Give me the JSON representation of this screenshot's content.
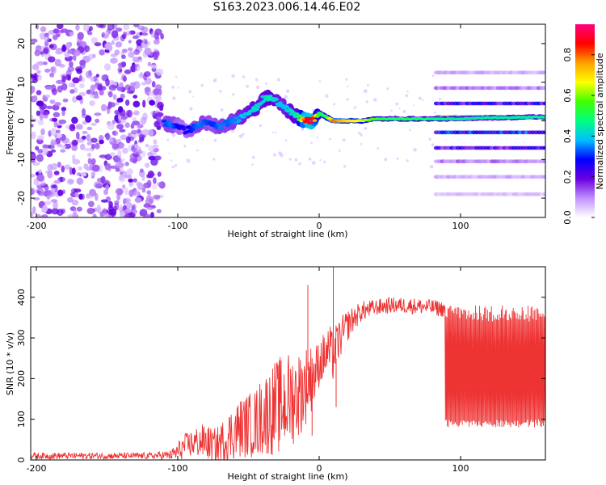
{
  "title": "S163.2023.006.14.46.E02",
  "chart_data": [
    {
      "type": "heatmap",
      "xlabel": "Height of straight line (km)",
      "ylabel": "Frequency (Hz)",
      "xlim": [
        -204,
        160
      ],
      "ylim": [
        -25,
        25
      ],
      "x_ticks": [
        -200,
        -100,
        0,
        100
      ],
      "y_ticks": [
        -20,
        -10,
        0,
        10,
        20
      ],
      "colorbar": {
        "label": "Normalized spectral amplitude",
        "range": [
          0,
          0.95
        ],
        "ticks": [
          0.0,
          0.2,
          0.4,
          0.6,
          0.8
        ],
        "colors": [
          "#ffffff",
          "#c090ff",
          "#6a00e0",
          "#0000ff",
          "#00bfff",
          "#00ff80",
          "#40ff00",
          "#ffff00",
          "#ffa000",
          "#ff0000",
          "#ff0080"
        ]
      },
      "noise_region_x": [
        -204,
        -111
      ],
      "noise_region_amplitude": 0.15,
      "ridge": [
        {
          "x": -110,
          "f": -0.5,
          "a": 0.3
        },
        {
          "x": -105,
          "f": -1.0,
          "a": 0.35
        },
        {
          "x": -100,
          "f": -1.2,
          "a": 0.28
        },
        {
          "x": -95,
          "f": -2.5,
          "a": 0.25
        },
        {
          "x": -90,
          "f": -2.0,
          "a": 0.3
        },
        {
          "x": -85,
          "f": -1.0,
          "a": 0.35
        },
        {
          "x": -80,
          "f": -0.5,
          "a": 0.32
        },
        {
          "x": -75,
          "f": -1.0,
          "a": 0.3
        },
        {
          "x": -70,
          "f": -1.5,
          "a": 0.35
        },
        {
          "x": -65,
          "f": -0.5,
          "a": 0.33
        },
        {
          "x": -60,
          "f": 0.0,
          "a": 0.35
        },
        {
          "x": -55,
          "f": 1.0,
          "a": 0.38
        },
        {
          "x": -50,
          "f": 2.5,
          "a": 0.4
        },
        {
          "x": -45,
          "f": 3.0,
          "a": 0.42
        },
        {
          "x": -40,
          "f": 5.5,
          "a": 0.4
        },
        {
          "x": -35,
          "f": 6.0,
          "a": 0.45
        },
        {
          "x": -30,
          "f": 5.0,
          "a": 0.4
        },
        {
          "x": -25,
          "f": 4.0,
          "a": 0.38
        },
        {
          "x": -20,
          "f": 2.0,
          "a": 0.42
        },
        {
          "x": -15,
          "f": 1.0,
          "a": 0.45
        },
        {
          "x": -10,
          "f": 0.0,
          "a": 0.85
        },
        {
          "x": -5,
          "f": 0.0,
          "a": 0.9
        },
        {
          "x": 0,
          "f": 2.0,
          "a": 0.5
        },
        {
          "x": 5,
          "f": 1.0,
          "a": 0.5
        },
        {
          "x": 10,
          "f": 0.0,
          "a": 0.8
        },
        {
          "x": 15,
          "f": 0.0,
          "a": 0.75
        },
        {
          "x": 20,
          "f": 0.0,
          "a": 0.7
        },
        {
          "x": 30,
          "f": 0.0,
          "a": 0.65
        },
        {
          "x": 40,
          "f": 0.5,
          "a": 0.55
        },
        {
          "x": 50,
          "f": 0.5,
          "a": 0.5
        },
        {
          "x": 60,
          "f": 0.5,
          "a": 0.5
        },
        {
          "x": 70,
          "f": 0.5,
          "a": 0.5
        },
        {
          "x": 80,
          "f": 0.5,
          "a": 0.48
        },
        {
          "x": 90,
          "f": 0.5,
          "a": 0.45
        },
        {
          "x": 100,
          "f": 0.5,
          "a": 0.45
        },
        {
          "x": 110,
          "f": 0.7,
          "a": 0.45
        },
        {
          "x": 120,
          "f": 0.8,
          "a": 0.45
        },
        {
          "x": 130,
          "f": 0.8,
          "a": 0.45
        },
        {
          "x": 140,
          "f": 0.9,
          "a": 0.45
        },
        {
          "x": 150,
          "f": 1.0,
          "a": 0.45
        },
        {
          "x": 160,
          "f": 1.0,
          "a": 0.45
        }
      ],
      "harmonic_region_x": [
        83,
        160
      ],
      "harmonics": [
        {
          "f": 12.5,
          "a": 0.08
        },
        {
          "f": 8.5,
          "a": 0.12
        },
        {
          "f": 4.5,
          "a": 0.25
        },
        {
          "f": 1.0,
          "a": 0.55
        },
        {
          "f": -3.0,
          "a": 0.3
        },
        {
          "f": -7.0,
          "a": 0.22
        },
        {
          "f": -10.5,
          "a": 0.12
        },
        {
          "f": -14.5,
          "a": 0.08
        },
        {
          "f": -19.0,
          "a": 0.06
        }
      ]
    },
    {
      "type": "line",
      "xlabel": "Height of straight line (km)",
      "ylabel": "SNR (10 * v/v)",
      "xlim": [
        -204,
        160
      ],
      "ylim": [
        0,
        475
      ],
      "x_ticks": [
        -200,
        -100,
        0,
        100
      ],
      "y_ticks": [
        0,
        100,
        200,
        300,
        400
      ],
      "color": "#ee3333",
      "series": [
        {
          "x": [
            -204,
            -180,
            -160,
            -140,
            -120,
            -105,
            -100,
            -95,
            -90,
            -85,
            -80,
            -75,
            -70,
            -65,
            -60,
            -55,
            -50,
            -45,
            -40,
            -35,
            -30,
            -25,
            -20,
            -15,
            -10,
            -7,
            -5,
            -3,
            0,
            5,
            8,
            10,
            12,
            15,
            20,
            25,
            30,
            40,
            50,
            60,
            70,
            80,
            89,
            90,
            100,
            110,
            120,
            130,
            140,
            150,
            160
          ],
          "mid": [
            10,
            10,
            10,
            10,
            10,
            12,
            20,
            35,
            40,
            45,
            45,
            35,
            40,
            55,
            70,
            80,
            85,
            90,
            110,
            120,
            130,
            140,
            150,
            160,
            180,
            200,
            200,
            210,
            240,
            260,
            270,
            250,
            280,
            300,
            330,
            350,
            365,
            375,
            380,
            380,
            378,
            375,
            370,
            230,
            230,
            230,
            230,
            230,
            230,
            230,
            230
          ],
          "spread": [
            8,
            8,
            8,
            8,
            8,
            12,
            25,
            30,
            35,
            40,
            45,
            40,
            50,
            60,
            70,
            75,
            80,
            85,
            100,
            110,
            120,
            120,
            120,
            110,
            100,
            90,
            80,
            70,
            60,
            60,
            60,
            60,
            55,
            50,
            40,
            30,
            25,
            20,
            20,
            20,
            20,
            20,
            20,
            150,
            150,
            150,
            150,
            150,
            150,
            150,
            150
          ]
        }
      ],
      "spikes": [
        {
          "x": -8,
          "y": 430
        },
        {
          "x": 10,
          "y": 475
        },
        {
          "x": 12,
          "y": 130
        },
        {
          "x": -5,
          "y": 60
        }
      ]
    }
  ]
}
